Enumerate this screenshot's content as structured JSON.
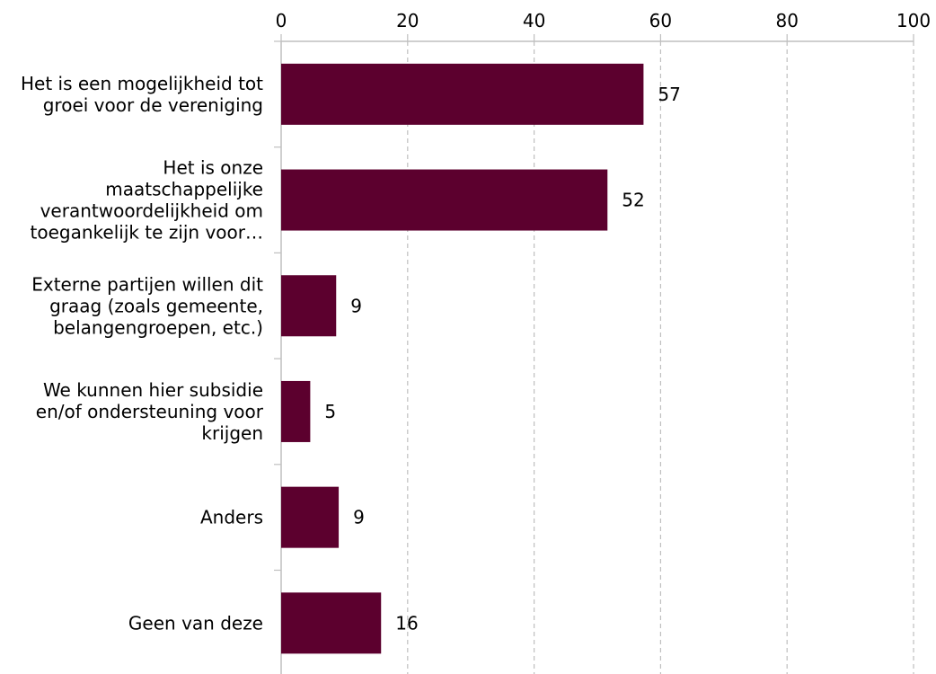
{
  "colors": {
    "bar": "#5c002e",
    "grid": "#bfbfbf",
    "axis": "#bfbfbf",
    "text": "#000000"
  },
  "chart_data": {
    "type": "bar",
    "orientation": "horizontal",
    "title": "",
    "xlabel": "",
    "ylabel": "",
    "xlim": [
      0,
      100
    ],
    "x_ticks": [
      0,
      20,
      40,
      60,
      80,
      100
    ],
    "x_tick_labels": [
      "0",
      "20",
      "40",
      "60",
      "80",
      "100"
    ],
    "x_axis_position": "top",
    "grid": "vertical dashed",
    "categories": [
      [
        "Het is een mogelijkheid tot",
        "groei voor de vereniging"
      ],
      [
        "Het is onze",
        "maatschappelijke",
        "verantwoordelijkheid om",
        "toegankelijk te zijn voor…"
      ],
      [
        "Externe partijen willen dit",
        "graag (zoals gemeente,",
        "belangengroepen, etc.)"
      ],
      [
        "We kunnen hier subsidie",
        "en/of ondersteuning voor",
        "krijgen"
      ],
      [
        "Anders"
      ],
      [
        "Geen van deze"
      ]
    ],
    "values": [
      57.3,
      51.6,
      8.7,
      4.6,
      9.1,
      15.8
    ],
    "data_labels": [
      "57",
      "52",
      "9",
      "5",
      "9",
      "16"
    ]
  }
}
